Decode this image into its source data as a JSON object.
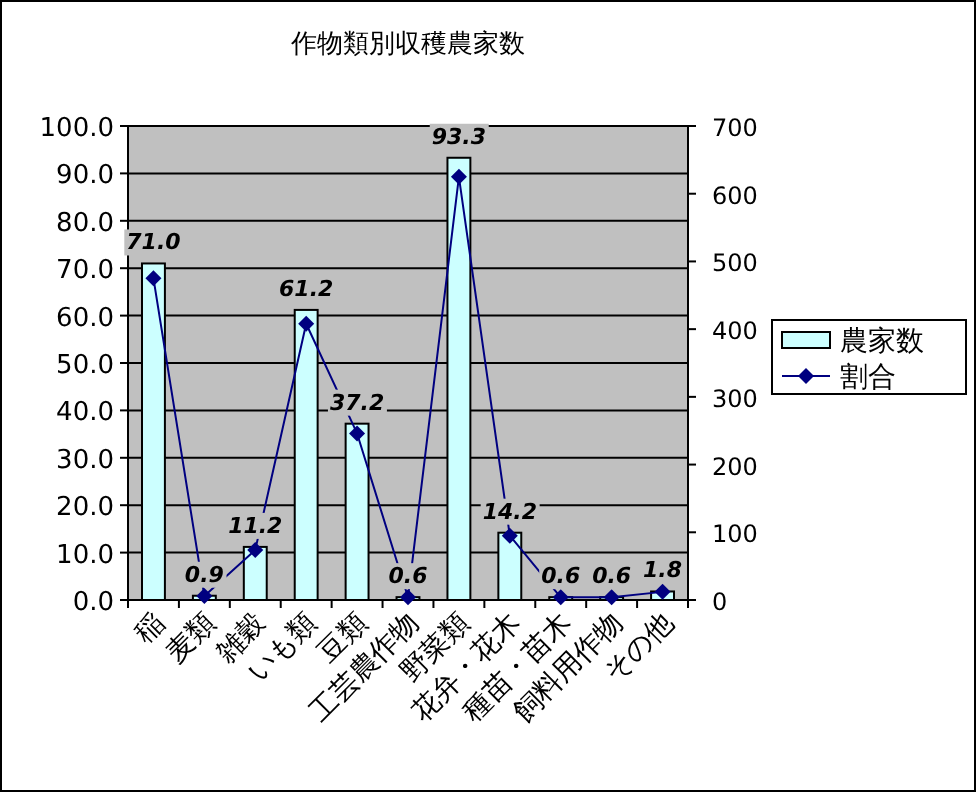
{
  "chart_data": {
    "type": "bar",
    "title": "作物類別収穫農家数",
    "categories": [
      "稲",
      "麦類",
      "雑穀",
      "いも類",
      "豆類",
      "工芸農作物",
      "野菜類",
      "花弁・花木",
      "種苗・苗木",
      "飼料用作物",
      "その他"
    ],
    "series": [
      {
        "name": "農家数",
        "color": "#ccffff",
        "values": [
          71.0,
          0.9,
          11.2,
          61.2,
          37.2,
          0.6,
          93.3,
          14.2,
          0.6,
          0.6,
          1.8
        ],
        "value_labels": [
          "71.0",
          "0.9",
          "11.2",
          "61.2",
          "37.2",
          "0.6",
          "93.3",
          "14.2",
          "0.6",
          "0.6",
          "1.8"
        ]
      },
      {
        "name": "割合",
        "type": "line",
        "axis": "y2",
        "color": "#000080",
        "values": [
          475,
          6,
          74,
          408,
          246,
          4,
          625,
          95,
          4,
          4,
          12
        ]
      }
    ],
    "ylim": [
      0,
      100
    ],
    "yticks": [
      {
        "value": 0,
        "label": "0.0"
      },
      {
        "value": 10,
        "label": "10.0"
      },
      {
        "value": 20,
        "label": "20.0"
      },
      {
        "value": 30,
        "label": "30.0"
      },
      {
        "value": 40,
        "label": "40.0"
      },
      {
        "value": 50,
        "label": "50.0"
      },
      {
        "value": 60,
        "label": "60.0"
      },
      {
        "value": 70,
        "label": "70.0"
      },
      {
        "value": 80,
        "label": "80.0"
      },
      {
        "value": 90,
        "label": "90.0"
      },
      {
        "value": 100,
        "label": "100.0"
      }
    ],
    "y2lim": [
      0,
      700
    ],
    "y2ticks": [
      0,
      100,
      200,
      300,
      400,
      500,
      600,
      700
    ],
    "grid": "y",
    "legend": "right",
    "marker": "diamond",
    "line_style": "solid"
  }
}
